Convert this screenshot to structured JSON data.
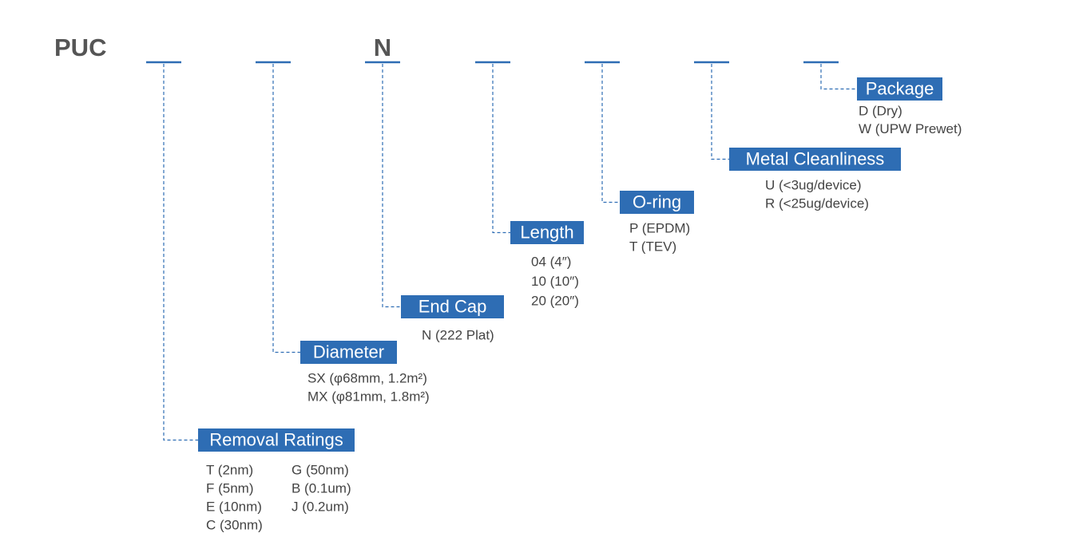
{
  "prefix": "PUC",
  "groups": [
    {
      "title": "Removal Ratings",
      "options": [
        "T (2nm)",
        "F (5nm)",
        "E (10nm)",
        "C (30nm)",
        "G (50nm)",
        "B (0.1um)",
        "J  (0.2um)"
      ]
    },
    {
      "title": "Diameter",
      "options": [
        "SX  (φ68mm, 1.2m²)",
        "MX (φ81mm, 1.8m²)"
      ]
    },
    {
      "title": "End Cap",
      "code": "N",
      "options": [
        "N (222 Plat)"
      ]
    },
    {
      "title": "Length",
      "options": [
        "04 (4″)",
        "10 (10″)",
        "20 (20″)"
      ]
    },
    {
      "title": "O-ring",
      "options": [
        "P (EPDM)",
        "T (TEV)"
      ]
    },
    {
      "title": "Metal Cleanliness",
      "options": [
        "U (<3ug/device)",
        "R (<25ug/device)"
      ]
    },
    {
      "title": "Package",
      "options": [
        "D (Dry)",
        "W (UPW Prewet)"
      ]
    }
  ]
}
